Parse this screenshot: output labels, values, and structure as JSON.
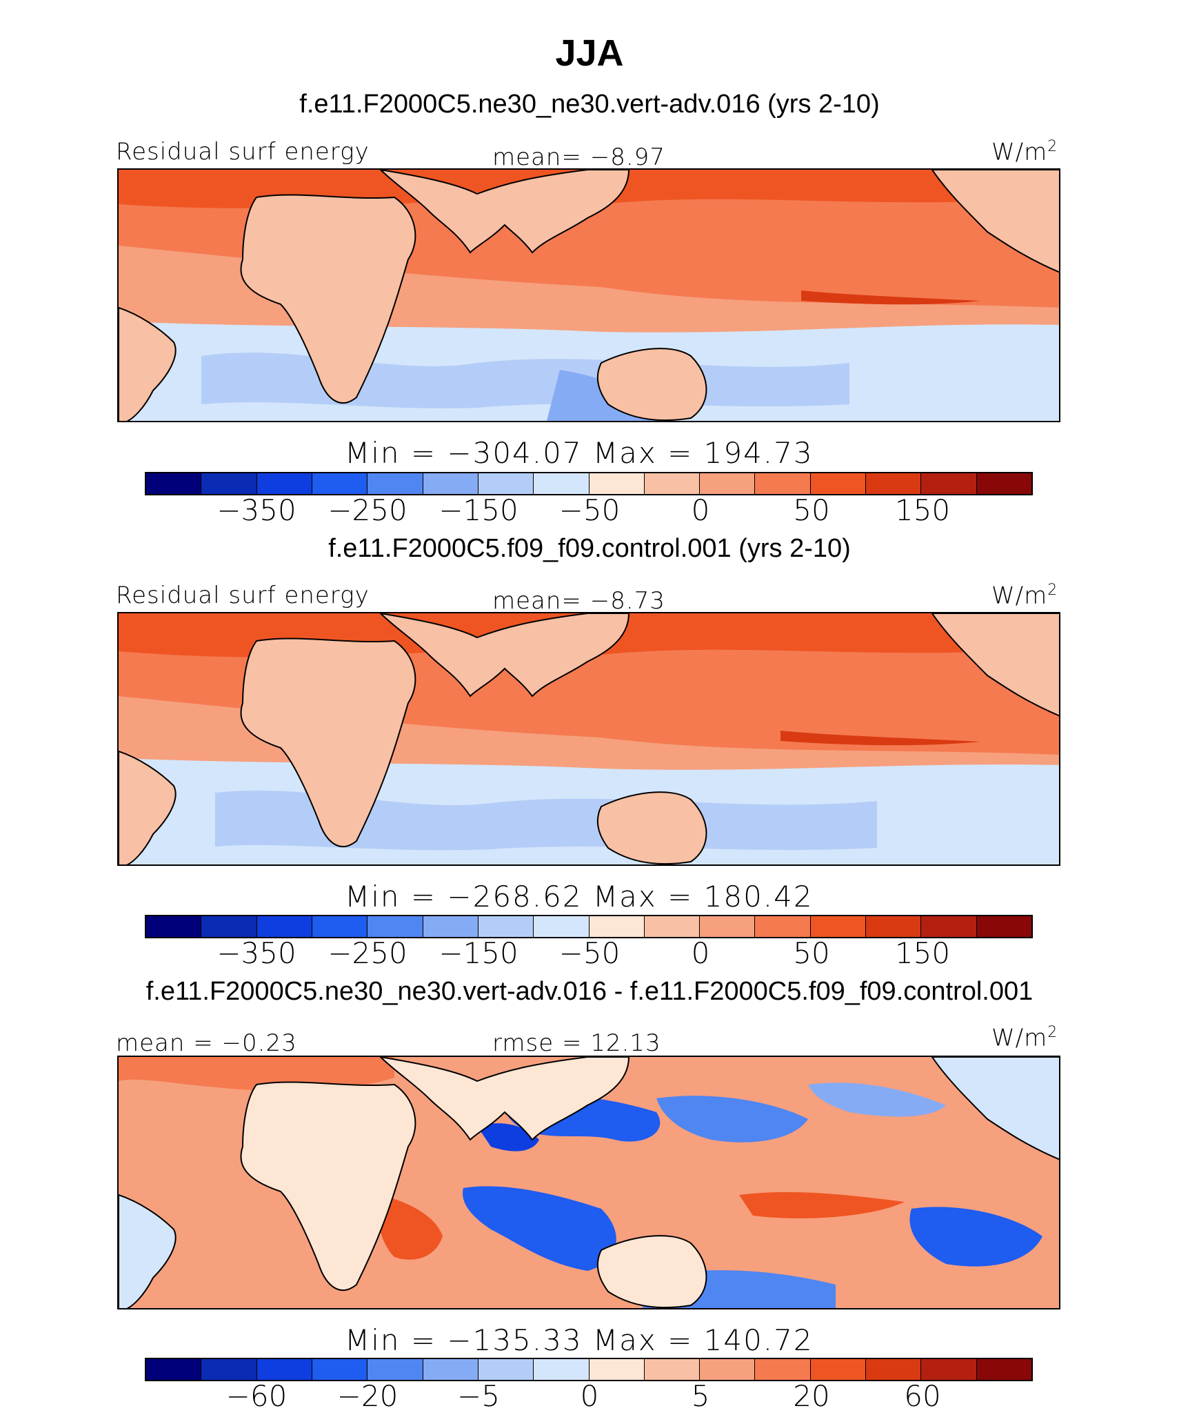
{
  "title": "JJA",
  "panels": [
    {
      "case_title": "f.e11.F2000C5.ne30_ne30.vert-adv.016 (yrs 2-10)",
      "left_label": "Residual surf energy",
      "center_label": "mean=   −8.97",
      "units": "W/m",
      "units_sup": "2",
      "minmax": "Min  =  −304.07  Max  =  194.73",
      "colorbar_ticks": [
        "−350",
        "−250",
        "−150",
        "−50",
        "0",
        "50",
        "150"
      ]
    },
    {
      "case_title": "f.e11.F2000C5.f09_f09.control.001 (yrs 2-10)",
      "left_label": "Residual surf energy",
      "center_label": "mean=   −8.73",
      "units": "W/m",
      "units_sup": "2",
      "minmax": "Min  =  −268.62  Max  =  180.42",
      "colorbar_ticks": [
        "−350",
        "−250",
        "−150",
        "−50",
        "0",
        "50",
        "150"
      ]
    },
    {
      "case_title": "f.e11.F2000C5.ne30_ne30.vert-adv.016 - f.e11.F2000C5.f09_f09.control.001",
      "left_label": "mean =   −0.23",
      "center_label": "rmse =   12.13",
      "units": "W/m",
      "units_sup": "2",
      "minmax": "Min  =  −135.33  Max  =  140.72",
      "colorbar_ticks": [
        "−60",
        "−20",
        "−5",
        "0",
        "5",
        "20",
        "60"
      ]
    }
  ],
  "colorbar_colors": [
    "#00007a",
    "#0a2bb4",
    "#0e3ee0",
    "#1f5cf0",
    "#4f86f2",
    "#86abf5",
    "#b4cdf8",
    "#d4e6fb",
    "#fde6d4",
    "#f8c0a4",
    "#f6a07e",
    "#f57a50",
    "#ef5523",
    "#d93a12",
    "#b32010",
    "#880808"
  ],
  "map_colors": {
    "land": "#f8c0a4",
    "warm_band": "#f57a50",
    "hot_band": "#ef5523",
    "cool_band": "#d4e6fb",
    "cold_band": "#b4cdf8",
    "deep_cold": "#4f86f2",
    "diff_pos": "#f6a07e",
    "diff_neg": "#1f5cf0"
  }
}
